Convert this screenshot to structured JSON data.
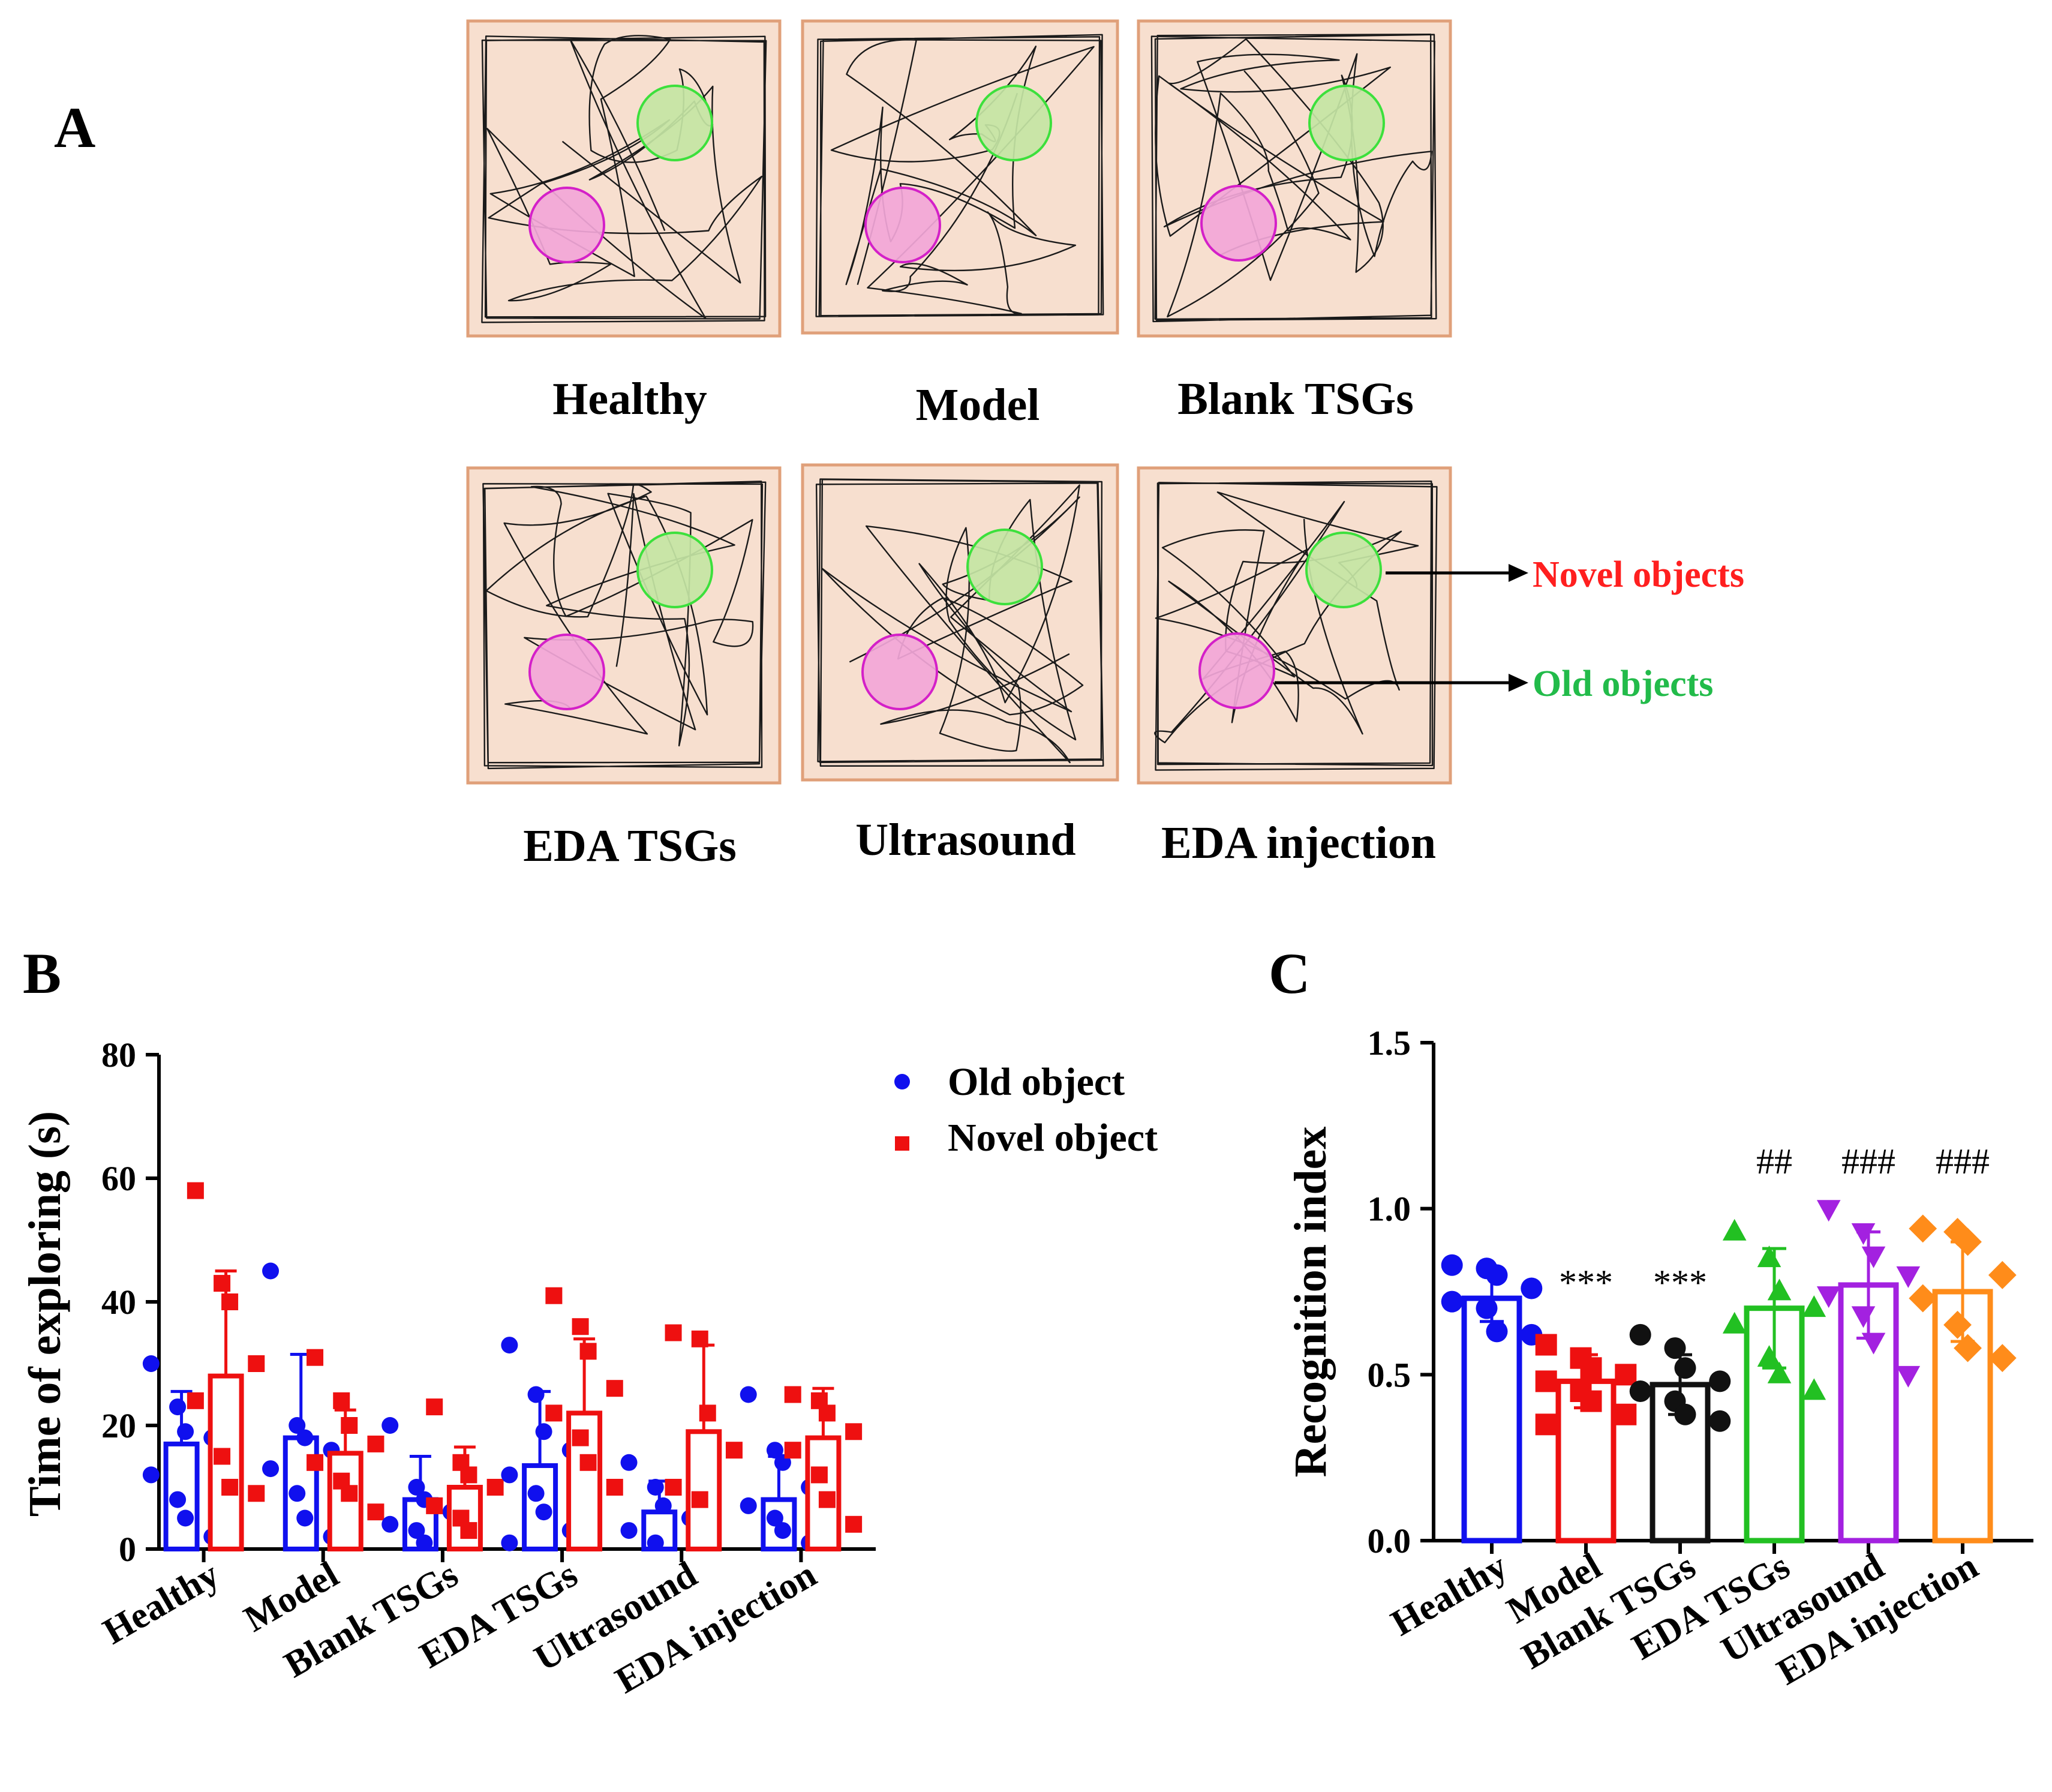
{
  "panel_a": {
    "letter": "A",
    "arenas": [
      {
        "label": "Healthy"
      },
      {
        "label": "Model"
      },
      {
        "label": "Blank TSGs"
      },
      {
        "label": "EDA TSGs"
      },
      {
        "label": "Ultrasound"
      },
      {
        "label": "EDA injection"
      }
    ],
    "annotation_novel": "Novel objects",
    "annotation_old": "Old objects",
    "colors": {
      "arena_fill": "#f7dfcf",
      "arena_border": "#e0a07a",
      "novel_circle": "#c4e5a4",
      "novel_edge": "#3ce03c",
      "old_circle": "#f2a6d8",
      "old_edge": "#d420c8",
      "annotation_novel": "#ff1f1f",
      "annotation_old": "#22bb4a"
    }
  },
  "chart_data": [
    {
      "id": "B",
      "letter": "B",
      "type": "bar",
      "title": "",
      "xlabel": "",
      "ylabel": "Time of exploring (s)",
      "ylim": [
        0,
        80
      ],
      "yticks": [
        "0",
        "20",
        "40",
        "60",
        "80"
      ],
      "categories": [
        "Healthy",
        "Model",
        "Blank TSGs",
        "EDA TSGs",
        "Ultrasound",
        "EDA injection"
      ],
      "legend_position": "top-right",
      "series": [
        {
          "name": "Old object",
          "marker": "circle",
          "color": "#1010ee",
          "values": [
            17,
            18,
            8,
            13.5,
            6,
            8
          ],
          "errors": [
            8.5,
            13.5,
            7,
            12,
            5,
            7
          ],
          "points": [
            [
              30,
              23,
              19,
              18,
              12,
              8,
              5,
              2
            ],
            [
              45,
              20,
              18,
              16,
              13,
              9,
              5,
              2
            ],
            [
              20,
              10,
              8,
              6,
              4,
              3,
              1
            ],
            [
              33,
              25,
              19,
              16,
              12,
              9,
              6,
              3,
              1
            ],
            [
              14,
              10,
              7,
              5,
              3,
              1
            ],
            [
              25,
              16,
              14,
              10,
              7,
              5,
              3,
              1
            ]
          ]
        },
        {
          "name": "Novel object",
          "marker": "square",
          "color": "#ee1010",
          "values": [
            28,
            15.5,
            10,
            22,
            19,
            18
          ],
          "errors": [
            17,
            7,
            6.5,
            12,
            14,
            8
          ],
          "points": [
            [
              58,
              43,
              40,
              30,
              24,
              15,
              10,
              9
            ],
            [
              31,
              24,
              20,
              17,
              14,
              11,
              9,
              6
            ],
            [
              23,
              14,
              12,
              10,
              7,
              5,
              3
            ],
            [
              41,
              36,
              32,
              26,
              22,
              18,
              14,
              10
            ],
            [
              35,
              34,
              22,
              16,
              10,
              8
            ],
            [
              25,
              24,
              22,
              19,
              16,
              12,
              8,
              4
            ]
          ]
        }
      ]
    },
    {
      "id": "C",
      "letter": "C",
      "type": "bar",
      "title": "",
      "xlabel": "",
      "ylabel": "Recognition index",
      "ylim": [
        0,
        1.5
      ],
      "yticks": [
        "0.0",
        "0.5",
        "1.0",
        "1.5"
      ],
      "categories": [
        "Healthy",
        "Model",
        "Blank TSGs",
        "EDA TSGs",
        "Ultrasound",
        "EDA injection"
      ],
      "series": [
        {
          "name": "Recognition index",
          "values": [
            0.73,
            0.48,
            0.47,
            0.7,
            0.77,
            0.75
          ],
          "errors": [
            0.07,
            0.08,
            0.09,
            0.18,
            0.16,
            0.15
          ],
          "colors": [
            "#1010ee",
            "#ee1010",
            "#111111",
            "#22c022",
            "#a321e0",
            "#ff8c1a"
          ],
          "markers": [
            "circle",
            "square",
            "circle",
            "triangle-up",
            "triangle-down",
            "diamond"
          ],
          "points": [
            [
              0.83,
              0.82,
              0.8,
              0.76,
              0.72,
              0.7,
              0.63,
              0.62
            ],
            [
              0.59,
              0.55,
              0.52,
              0.5,
              0.48,
              0.45,
              0.42,
              0.38,
              0.35
            ],
            [
              0.62,
              0.58,
              0.52,
              0.48,
              0.45,
              0.42,
              0.38,
              0.36
            ],
            [
              0.93,
              0.85,
              0.75,
              0.7,
              0.65,
              0.55,
              0.5,
              0.45
            ],
            [
              1.0,
              0.93,
              0.86,
              0.8,
              0.74,
              0.68,
              0.6,
              0.5
            ],
            [
              0.94,
              0.93,
              0.9,
              0.8,
              0.73,
              0.65,
              0.58,
              0.55
            ]
          ],
          "annotations": [
            "",
            "***",
            "***",
            "##",
            "###",
            "###"
          ]
        }
      ]
    }
  ]
}
